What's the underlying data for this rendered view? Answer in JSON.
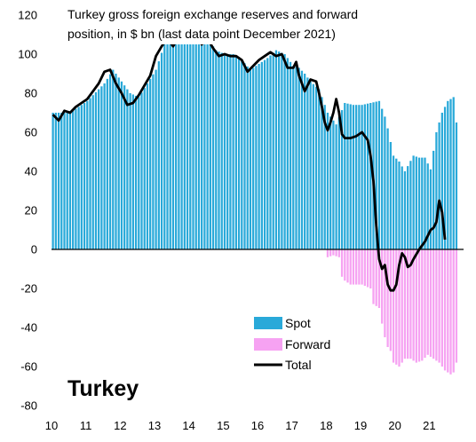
{
  "chart_data": {
    "type": "bar",
    "title_lines": [
      "Turkey gross foreign exchange reserves and forward",
      "position, in $ bn (last data point December 2021)"
    ],
    "country_label": "Turkey",
    "x_tick_labels": [
      "10",
      "11",
      "12",
      "13",
      "14",
      "15",
      "16",
      "17",
      "18",
      "19",
      "20",
      "21"
    ],
    "y_tick_labels": [
      "120",
      "100",
      "80",
      "60",
      "40",
      "20",
      "0",
      "-20",
      "-40",
      "-60",
      "-80"
    ],
    "ylim": [
      -80,
      120
    ],
    "x_unit": "month index from January 2010 (0 = Jan 2010)",
    "x_range": [
      0,
      143
    ],
    "legend": {
      "position": "bottom-center",
      "items": [
        {
          "key": "spot",
          "label": "Spot"
        },
        {
          "key": "forward",
          "label": "Forward"
        },
        {
          "key": "total",
          "label": "Total"
        }
      ]
    },
    "colors": {
      "spot": "#29A9D9",
      "forward": "#F6A2F2",
      "total": "#000000"
    },
    "series": {
      "spot": {
        "name": "Spot",
        "type": "bar",
        "points": [
          [
            0,
            70
          ],
          [
            6,
            70
          ],
          [
            12,
            76
          ],
          [
            18,
            85
          ],
          [
            21,
            92
          ],
          [
            24,
            86
          ],
          [
            27,
            80
          ],
          [
            30,
            78
          ],
          [
            33,
            85
          ],
          [
            36,
            92
          ],
          [
            39,
            105
          ],
          [
            42,
            110
          ],
          [
            45,
            106
          ],
          [
            48,
            108
          ],
          [
            51,
            110
          ],
          [
            54,
            108
          ],
          [
            57,
            102
          ],
          [
            60,
            100
          ],
          [
            63,
            100
          ],
          [
            66,
            97
          ],
          [
            69,
            92
          ],
          [
            72,
            95
          ],
          [
            75,
            98
          ],
          [
            78,
            102
          ],
          [
            81,
            100
          ],
          [
            84,
            94
          ],
          [
            86,
            93
          ],
          [
            88,
            90
          ],
          [
            90,
            86
          ],
          [
            93,
            82
          ],
          [
            96,
            70
          ],
          [
            99,
            64
          ],
          [
            102,
            75
          ],
          [
            105,
            74
          ],
          [
            108,
            74
          ],
          [
            111,
            75
          ],
          [
            114,
            76
          ],
          [
            116,
            68
          ],
          [
            117,
            62
          ],
          [
            119,
            48
          ],
          [
            121,
            45
          ],
          [
            123,
            40
          ],
          [
            126,
            48
          ],
          [
            128,
            47
          ],
          [
            130,
            47
          ],
          [
            132,
            41
          ],
          [
            134,
            60
          ],
          [
            136,
            70
          ],
          [
            138,
            76
          ],
          [
            140,
            78
          ],
          [
            141,
            65
          ]
        ]
      },
      "forward": {
        "name": "Forward",
        "type": "bar",
        "points": [
          [
            0,
            0
          ],
          [
            95,
            0
          ],
          [
            96,
            -4
          ],
          [
            98,
            -3
          ],
          [
            100,
            -4
          ],
          [
            101,
            -14
          ],
          [
            102,
            -16
          ],
          [
            104,
            -18
          ],
          [
            108,
            -18
          ],
          [
            111,
            -20
          ],
          [
            112,
            -28
          ],
          [
            114,
            -30
          ],
          [
            115,
            -38
          ],
          [
            116,
            -45
          ],
          [
            117,
            -50
          ],
          [
            118,
            -52
          ],
          [
            119,
            -58
          ],
          [
            121,
            -60
          ],
          [
            123,
            -56
          ],
          [
            125,
            -56
          ],
          [
            127,
            -58
          ],
          [
            129,
            -57
          ],
          [
            131,
            -54
          ],
          [
            133,
            -56
          ],
          [
            135,
            -58
          ],
          [
            137,
            -62
          ],
          [
            139,
            -64
          ],
          [
            140,
            -63
          ],
          [
            141,
            -58
          ]
        ]
      },
      "total": {
        "name": "Total",
        "type": "line",
        "points": [
          [
            0,
            69
          ],
          [
            2,
            66
          ],
          [
            4,
            71
          ],
          [
            6,
            70
          ],
          [
            8,
            73
          ],
          [
            10,
            75
          ],
          [
            12,
            77
          ],
          [
            14,
            81
          ],
          [
            16,
            85
          ],
          [
            18,
            91
          ],
          [
            20,
            92
          ],
          [
            22,
            85
          ],
          [
            24,
            80
          ],
          [
            26,
            74
          ],
          [
            28,
            75
          ],
          [
            30,
            79
          ],
          [
            32,
            84
          ],
          [
            34,
            89
          ],
          [
            36,
            99
          ],
          [
            38,
            104
          ],
          [
            40,
            108
          ],
          [
            42,
            104
          ],
          [
            44,
            109
          ],
          [
            46,
            107
          ],
          [
            48,
            111
          ],
          [
            50,
            110
          ],
          [
            52,
            105
          ],
          [
            54,
            108
          ],
          [
            56,
            103
          ],
          [
            58,
            99
          ],
          [
            60,
            100
          ],
          [
            62,
            99
          ],
          [
            64,
            99
          ],
          [
            66,
            97
          ],
          [
            68,
            91
          ],
          [
            70,
            94
          ],
          [
            72,
            97
          ],
          [
            74,
            99
          ],
          [
            76,
            101
          ],
          [
            78,
            99
          ],
          [
            80,
            100
          ],
          [
            82,
            93
          ],
          [
            84,
            93
          ],
          [
            85,
            96
          ],
          [
            86,
            89
          ],
          [
            88,
            81
          ],
          [
            90,
            87
          ],
          [
            92,
            86
          ],
          [
            93,
            80
          ],
          [
            94,
            73
          ],
          [
            95,
            65
          ],
          [
            96,
            61
          ],
          [
            97,
            65
          ],
          [
            98,
            70
          ],
          [
            99,
            77
          ],
          [
            100,
            70
          ],
          [
            101,
            59
          ],
          [
            102,
            57
          ],
          [
            104,
            57
          ],
          [
            106,
            58
          ],
          [
            108,
            60
          ],
          [
            110,
            56
          ],
          [
            111,
            48
          ],
          [
            112,
            35
          ],
          [
            113,
            12
          ],
          [
            114,
            -5
          ],
          [
            115,
            -10
          ],
          [
            116,
            -8
          ],
          [
            117,
            -18
          ],
          [
            118,
            -21
          ],
          [
            119,
            -21
          ],
          [
            120,
            -18
          ],
          [
            121,
            -8
          ],
          [
            122,
            -2
          ],
          [
            123,
            -4
          ],
          [
            124,
            -9
          ],
          [
            125,
            -8
          ],
          [
            126,
            -5
          ],
          [
            128,
            0
          ],
          [
            130,
            4
          ],
          [
            132,
            10
          ],
          [
            133,
            11
          ],
          [
            134,
            14
          ],
          [
            135,
            25
          ],
          [
            136,
            19
          ],
          [
            137,
            5
          ]
        ]
      }
    }
  }
}
